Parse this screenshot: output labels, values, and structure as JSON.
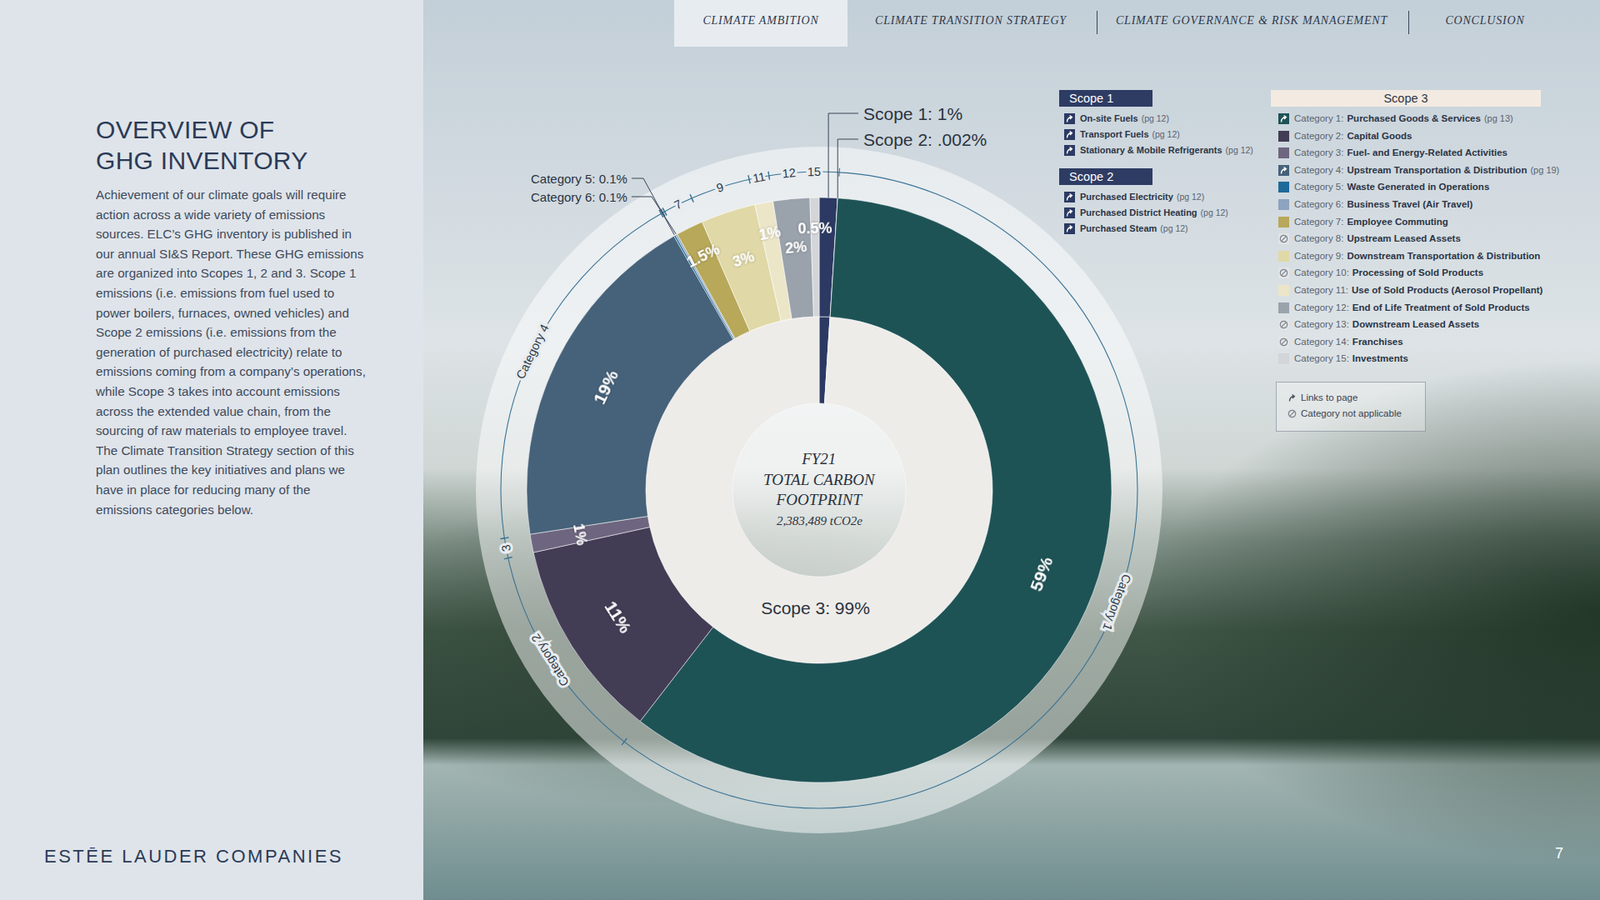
{
  "page": {
    "nav": [
      {
        "label": "CLIMATE AMBITION",
        "active": true
      },
      {
        "label": "CLIMATE TRANSITION STRATEGY",
        "active": false
      },
      {
        "label": "CLIMATE GOVERNANCE & RISK MANAGEMENT",
        "active": false
      },
      {
        "label": "CONCLUSION",
        "active": false
      }
    ],
    "heading": [
      "OVERVIEW OF",
      "GHG INVENTORY"
    ],
    "body": "Achievement of our climate goals will require action across a wide variety of emissions sources. ELC’s GHG inventory is published in our annual SI&S Report. These GHG emissions are organized into Scopes 1, 2 and 3. Scope 1 emissions (i.e. emissions from fuel used to power boilers, furnaces, owned vehicles) and Scope 2 emissions (i.e. emissions from the generation of purchased electricity) relate to emissions coming from a company’s operations, while Scope 3 takes into account emissions across the extended value chain, from the sourcing of raw materials to employee travel. The Climate Transition Strategy section of this plan outlines the key initiatives and plans we have in place for reducing many of the emissions categories below.",
    "footer": "ESTĒE LAUDER COMPANIES",
    "page_number": 7
  },
  "chart_data": {
    "type": "donut",
    "title": [
      "FY21",
      "TOTAL CARBON",
      "FOOTPRINT"
    ],
    "subtitle": "2,383,489 tCO2e",
    "inner_ring": {
      "values": [
        1,
        0.002,
        99
      ],
      "callout_labels": [
        "Scope 1: 1%",
        "Scope 2: .002%",
        null
      ],
      "value_labels": [
        null,
        null,
        "Scope 3: 99%"
      ],
      "colors": [
        "#2c3a63",
        "#2c3a63",
        "#eeece9"
      ]
    },
    "outer_ring": {
      "ring_labels": [
        "Category 1",
        "Category 2",
        "3",
        "Category 4",
        null,
        null,
        "7",
        "9",
        "11",
        "12",
        "15"
      ],
      "callout_labels": [
        null,
        null,
        null,
        null,
        "Category 5: 0.1%",
        "Category 6: 0.1%",
        null,
        null,
        null,
        null,
        null
      ],
      "values": [
        59,
        11,
        1,
        19,
        0.1,
        0.1,
        1.5,
        3,
        1,
        2,
        0.5
      ],
      "value_labels": [
        "59%",
        "11%",
        "1%",
        "19%",
        null,
        null,
        "1.5%",
        "3%",
        "1%",
        "2%",
        "0.5%"
      ],
      "colors": [
        "#1e5356",
        "#433c55",
        "#6e6680",
        "#46627a",
        "#1f6a9a",
        "#8da3bf",
        "#b8a85a",
        "#e0d8a6",
        "#ece6c8",
        "#9aa2ac",
        "#d3d5d8"
      ]
    },
    "legends": [
      {
        "title": "Scope 1",
        "items": [
          {
            "name": "On-site Fuels",
            "page": "(pg 12)",
            "marker": "link",
            "color": "#2c3a63"
          },
          {
            "name": "Transport Fuels",
            "page": "(pg 12)",
            "marker": "link",
            "color": "#2c3a63"
          },
          {
            "name": "Stationary & Mobile Refrigerants",
            "page": "(pg 12)",
            "marker": "link",
            "color": "#2c3a63"
          }
        ]
      },
      {
        "title": "Scope 2",
        "items": [
          {
            "name": "Purchased Electricity",
            "page": "(pg 12)",
            "marker": "link",
            "color": "#2c3a63"
          },
          {
            "name": "Purchased District Heating",
            "page": "(pg 12)",
            "marker": "link",
            "color": "#2c3a63"
          },
          {
            "name": "Purchased Steam",
            "page": "(pg 12)",
            "marker": "link",
            "color": "#2c3a63"
          }
        ]
      },
      {
        "title": "Scope 3",
        "items": [
          {
            "label": "Category 1:",
            "name": "Purchased Goods & Services",
            "page": "(pg 13)",
            "marker": "link",
            "color": "#1e5356"
          },
          {
            "label": "Category 2:",
            "name": "Capital Goods",
            "marker": "swatch",
            "color": "#433c55"
          },
          {
            "label": "Category 3:",
            "name": "Fuel- and Energy-Related Activities",
            "marker": "swatch",
            "color": "#6e6680"
          },
          {
            "label": "Category 4:",
            "name": "Upstream Transportation & Distribution",
            "page": "(pg 19)",
            "marker": "link",
            "color": "#46627a"
          },
          {
            "label": "Category 5:",
            "name": "Waste Generated in Operations",
            "marker": "swatch",
            "color": "#1f6a9a"
          },
          {
            "label": "Category 6:",
            "name": "Business Travel (Air Travel)",
            "marker": "swatch",
            "color": "#8da3bf"
          },
          {
            "label": "Category 7:",
            "name": "Employee Commuting",
            "marker": "swatch",
            "color": "#b8a85a"
          },
          {
            "label": "Category 8:",
            "name": "Upstream Leased Assets",
            "marker": "not_applicable"
          },
          {
            "label": "Category 9:",
            "name": "Downstream Transportation & Distribution",
            "marker": "swatch",
            "color": "#e0d8a6"
          },
          {
            "label": "Category 10:",
            "name": "Processing of Sold Products",
            "marker": "not_applicable"
          },
          {
            "label": "Category 11:",
            "name": "Use of Sold Products (Aerosol Propellant)",
            "marker": "swatch",
            "color": "#ece6c8"
          },
          {
            "label": "Category 12:",
            "name": "End of Life Treatment of Sold Products",
            "marker": "swatch",
            "color": "#9aa2ac"
          },
          {
            "label": "Category 13:",
            "name": "Downstream Leased Assets",
            "marker": "not_applicable"
          },
          {
            "label": "Category 14:",
            "name": "Franchises",
            "marker": "not_applicable"
          },
          {
            "label": "Category 15:",
            "name": "Investments",
            "marker": "swatch",
            "color": "#d3d5d8"
          }
        ]
      }
    ],
    "key": [
      {
        "marker": "link",
        "label": "Links to page"
      },
      {
        "marker": "not_applicable",
        "label": "Category not applicable"
      }
    ]
  }
}
